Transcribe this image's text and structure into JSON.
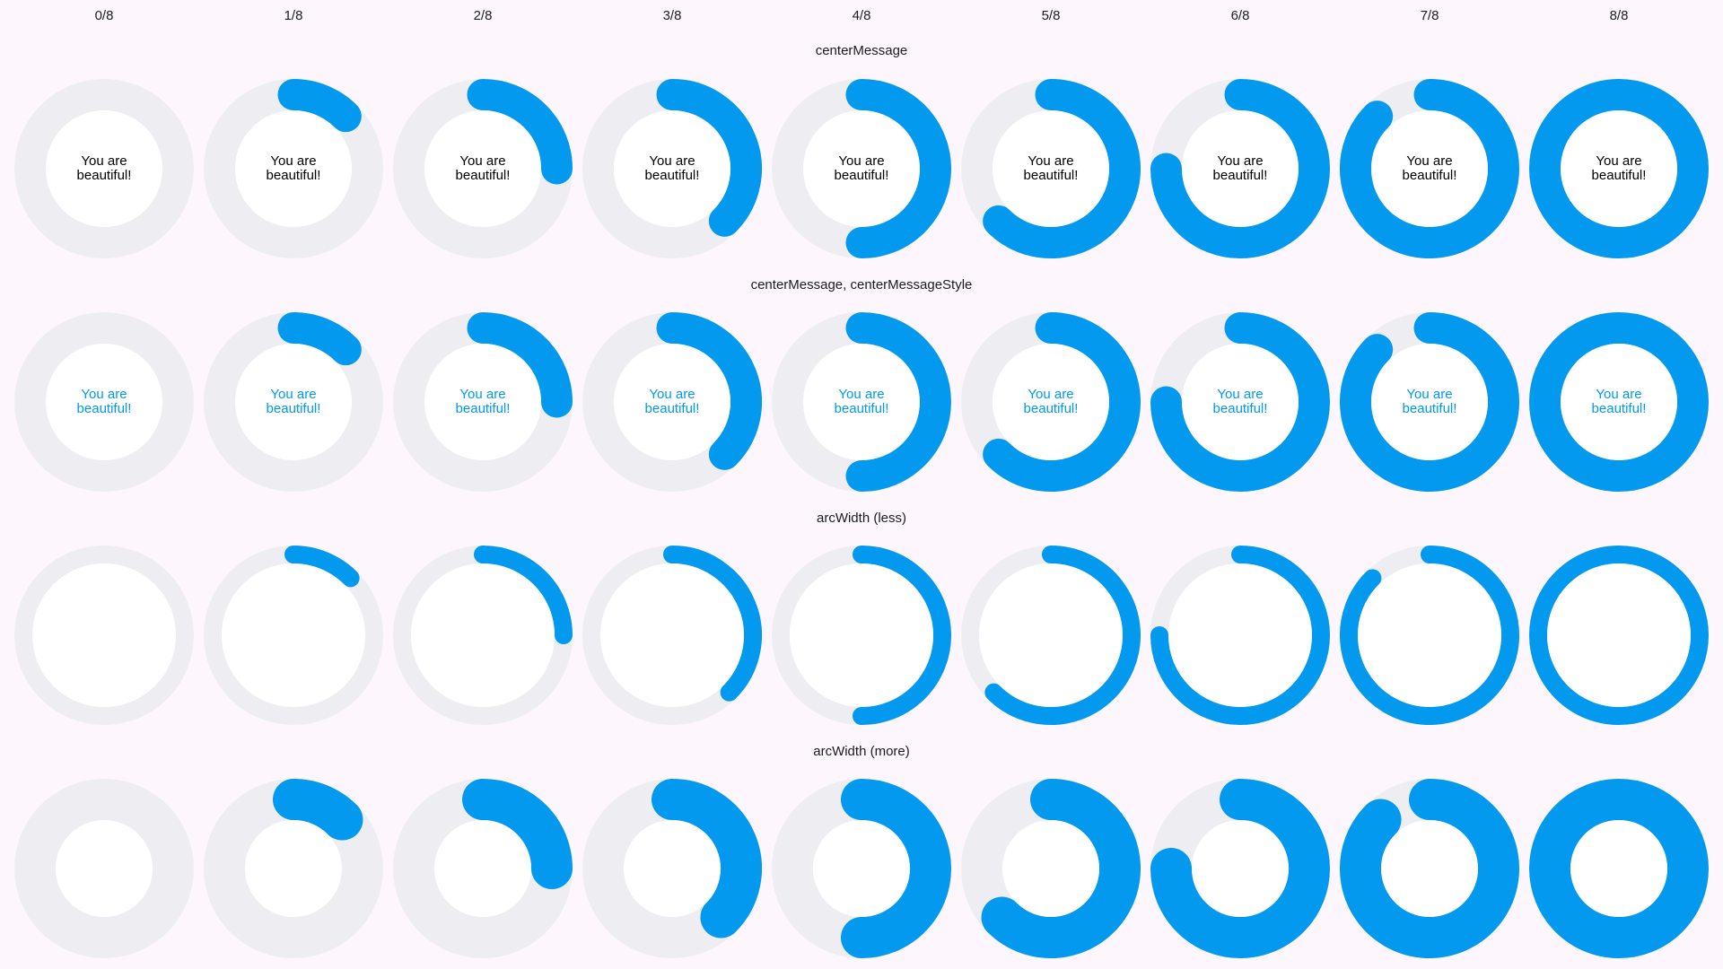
{
  "columns": [
    "0/8",
    "1/8",
    "2/8",
    "3/8",
    "4/8",
    "5/8",
    "6/8",
    "7/8",
    "8/8"
  ],
  "progress": [
    0,
    0.125,
    0.25,
    0.375,
    0.5,
    0.625,
    0.75,
    0.875,
    1
  ],
  "colors": {
    "page_background": "#fdf7fd",
    "track": "#eeeef2",
    "arc": "#0299ee",
    "center_fill": "#ffffff",
    "label_text": "#1c1b1f",
    "message_default": "#000000",
    "message_styled": "#0299ee"
  },
  "sections": [
    {
      "title": "centerMessage",
      "center_message": [
        "You are",
        "beautiful!"
      ],
      "message_style": "default",
      "arc_width": "medium"
    },
    {
      "title": "centerMessage, centerMessageStyle",
      "center_message": [
        "You are",
        "beautiful!"
      ],
      "message_style": "styled",
      "arc_width": "medium"
    },
    {
      "title": "arcWidth (less)",
      "center_message": [],
      "message_style": "none",
      "arc_width": "less"
    },
    {
      "title": "arcWidth (more)",
      "center_message": [],
      "message_style": "none",
      "arc_width": "more"
    }
  ]
}
